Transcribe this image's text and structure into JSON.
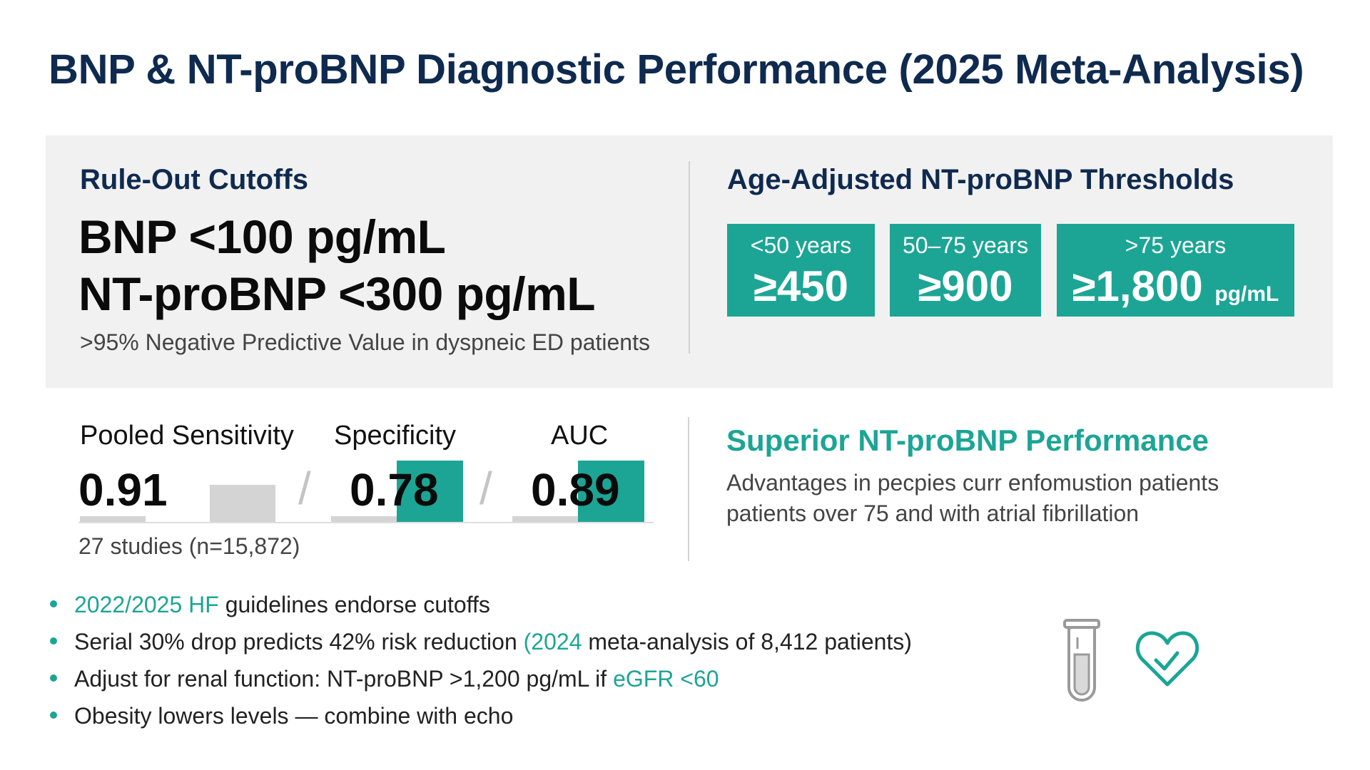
{
  "title": "BNP & NT-proBNP Diagnostic Performance (2025 Meta-Analysis)",
  "rule_out": {
    "heading": "Rule-Out Cutoffs",
    "line1": "BNP <100 pg/mL",
    "line2": "NT-proBNP <300 pg/mL",
    "note": ">95% Negative Predictive Value in dyspneic ED patients"
  },
  "age_adjusted": {
    "heading": "Age-Adjusted NT-proBNP Thresholds",
    "boxes": [
      {
        "label": "<50 years",
        "value": "≥450",
        "unit": ""
      },
      {
        "label": "50–75 years",
        "value": "≥900",
        "unit": ""
      },
      {
        "label": ">75 years",
        "value": "≥1,800",
        "unit": "pg/mL"
      }
    ]
  },
  "metrics": {
    "items": [
      {
        "label": "Pooled Sensitivity",
        "value": "0.91"
      },
      {
        "label": "Specificity",
        "value": "0.78"
      },
      {
        "label": "AUC",
        "value": "0.89"
      }
    ],
    "separator": "/",
    "studies": "27 studies (n=15,872)"
  },
  "superior": {
    "heading": "Superior NT-proBNP Performance",
    "line1": "Advantages in pecpies curr enfomustion patients",
    "line2": "patients over 75 and with atrial fibrillation"
  },
  "bullets": [
    {
      "parts": [
        {
          "text": "2022/2025 HF",
          "accent": true
        },
        {
          "text": " guidelines endorse cutoffs",
          "accent": false
        }
      ]
    },
    {
      "parts": [
        {
          "text": "Serial 30% drop predicts 42% risk reduction ",
          "accent": false
        },
        {
          "text": "(2024",
          "accent": true
        },
        {
          "text": " meta-analysis of 8,412 patients)",
          "accent": false
        }
      ]
    },
    {
      "parts": [
        {
          "text": "Adjust for renal function: NT-proBNP >1,200 pg/mL if ",
          "accent": false
        },
        {
          "text": "eGFR <60",
          "accent": true
        }
      ]
    },
    {
      "parts": [
        {
          "text": "Obesity lowers levels — combine with echo",
          "accent": false
        }
      ]
    }
  ],
  "icons": [
    "test-tube-icon",
    "heart-check-icon"
  ],
  "colors": {
    "navy": "#0f2a4f",
    "teal": "#1ca595",
    "panel": "#f1f1f1"
  }
}
